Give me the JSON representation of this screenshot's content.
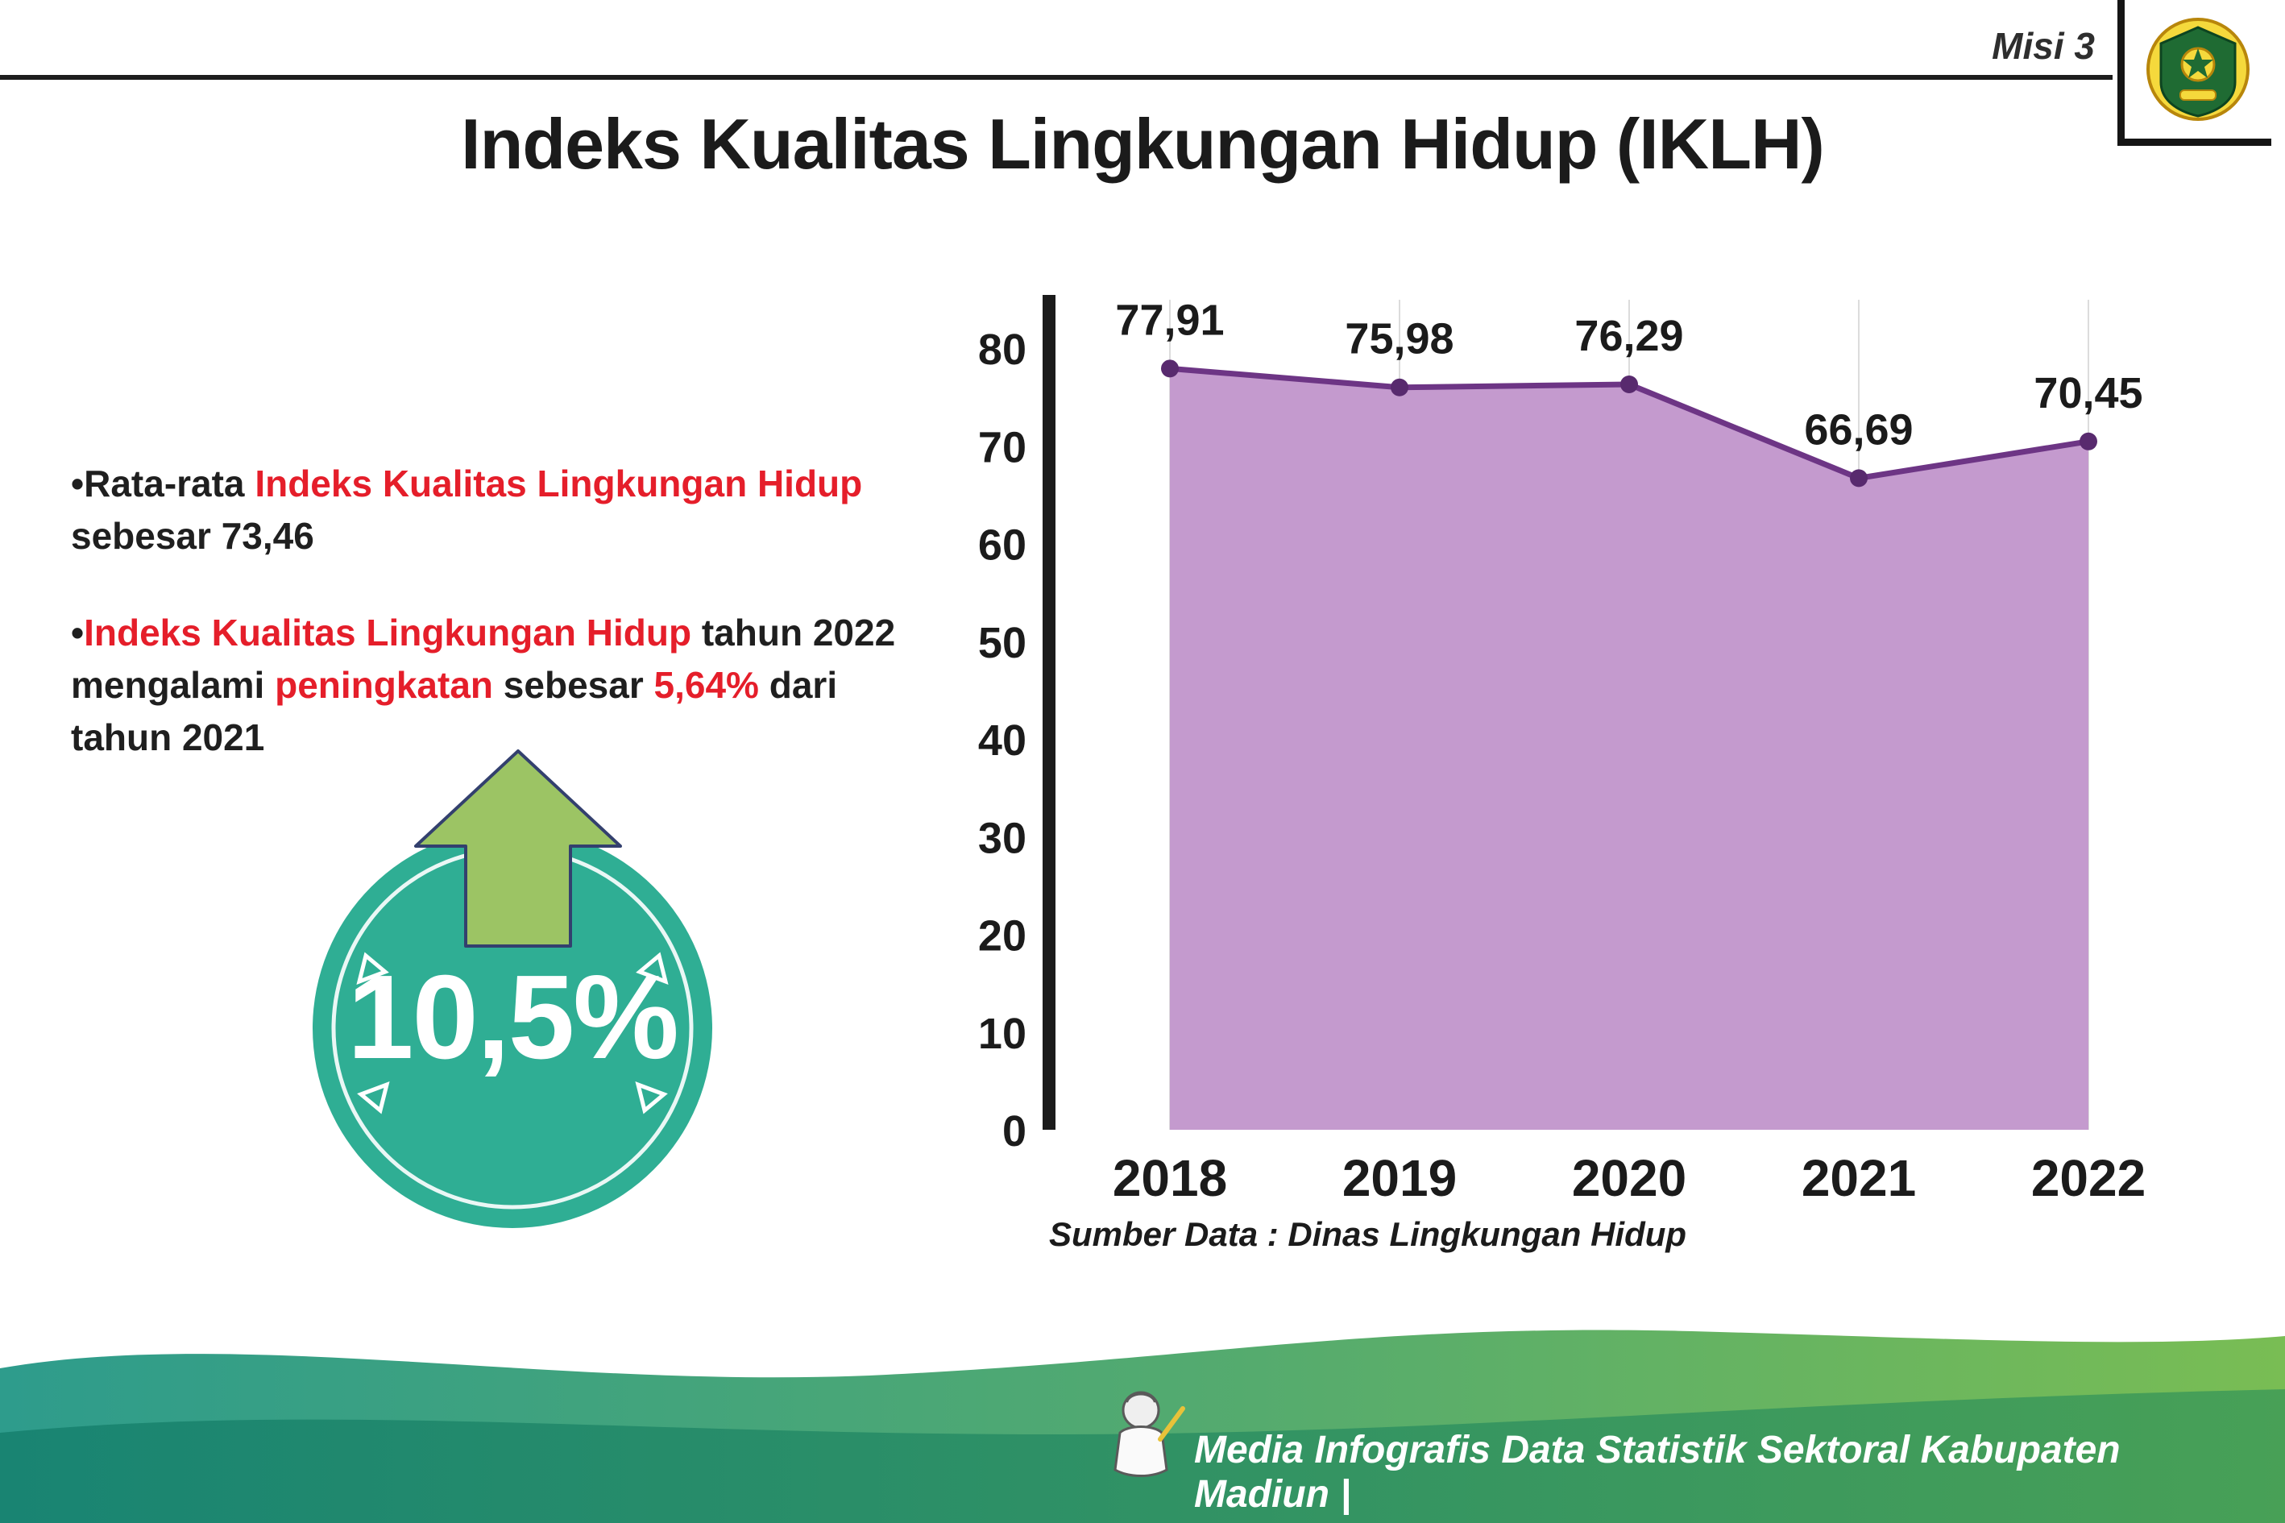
{
  "header": {
    "misi_label": "Misi 3",
    "title": "Indeks Kualitas Lingkungan Hidup (IKLH)",
    "logo": "kabupaten-madiun-crest"
  },
  "bullets": {
    "bullet_char": "•",
    "item1": {
      "seg1": "Rata-rata ",
      "seg2": "Indeks Kualitas Lingkungan Hidup",
      "seg3": " sebesar 73,46"
    },
    "item2": {
      "seg1": "Indeks Kualitas Lingkungan Hidup",
      "seg2": " tahun 2022 mengalami ",
      "seg3": "peningkatan",
      "seg4": " sebesar ",
      "seg5": "5,64%",
      "seg6": " dari tahun 2021"
    }
  },
  "badge": {
    "value": "10,5%",
    "arrow_icon": "up-arrow-icon",
    "circle_color": "#2fae94",
    "arrow_color": "#9cc464"
  },
  "chart_data": {
    "type": "area",
    "categories": [
      "2018",
      "2019",
      "2020",
      "2021",
      "2022"
    ],
    "values": [
      77.91,
      75.98,
      76.29,
      66.69,
      70.45
    ],
    "value_labels": [
      "77,91",
      "75,98",
      "76,29",
      "66,69",
      "70,45"
    ],
    "title": "",
    "xlabel": "",
    "ylabel": "",
    "ylim": [
      0,
      80
    ],
    "ytick_step": 10,
    "grid": "vertical-light",
    "area_color": "#c49ace",
    "line_color": "#6d3585",
    "point_color": "#582a6e",
    "axis_color": "#1b1b1b",
    "grid_color": "#dcdcdc"
  },
  "chart_meta": {
    "source": "Sumber Data : Dinas Lingkungan Hidup"
  },
  "footer": {
    "caption": "Media Infografis Data Statistik Sektoral Kabupaten Madiun |",
    "mascot_icon": "mascot-icon",
    "gradient_left": "#2e9c8c",
    "gradient_right": "#79bd54",
    "gradient_dark_left": "#15806e",
    "gradient_dark_right": "#3f9b57"
  },
  "colors": {
    "accent_red": "#e51e2a",
    "text_black": "#1f1f1f"
  }
}
